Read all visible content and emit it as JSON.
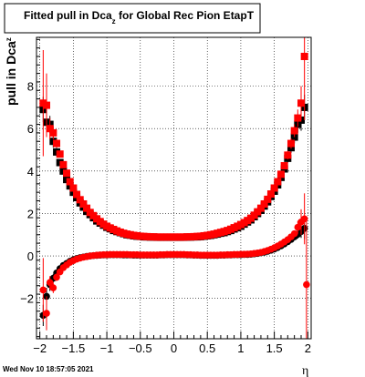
{
  "chart_data": {
    "type": "scatter",
    "title_main": "Fitted pull in Dca",
    "title_sub": "z",
    "title_rest": " for Global Rec Pion EtapT",
    "ylabel_main": "pull in Dca",
    "ylabel_sub": "z",
    "xlabel": "η",
    "footer": "Wed Nov 10 18:57:05 2021",
    "xlim": [
      -2.05,
      2.05
    ],
    "ylim": [
      -3.9,
      10.3
    ],
    "grid": true,
    "x_ticks": [
      -2,
      -1.5,
      -1,
      -0.5,
      0,
      0.5,
      1,
      1.5,
      2
    ],
    "x_tick_labels": [
      "−2",
      "−1.5",
      "−1",
      "−0.5",
      "0",
      "0.5",
      "1",
      "1.5",
      "2"
    ],
    "y_ticks": [
      -2,
      0,
      2,
      4,
      6,
      8
    ],
    "y_tick_labels": [
      "−2",
      "0",
      "2",
      "4",
      "6",
      "8"
    ],
    "colors": {
      "series_black": "#000000",
      "series_red": "#ff0000"
    },
    "series": [
      {
        "marker": "square",
        "color": "#000000",
        "x": [
          -1.95,
          -1.9,
          -1.85,
          -1.8,
          -1.75,
          -1.7,
          -1.65,
          -1.6,
          -1.55,
          -1.5,
          -1.45,
          -1.4,
          -1.35,
          -1.3,
          -1.25,
          -1.2,
          -1.15,
          -1.1,
          -1.05,
          -1.0,
          -0.95,
          -0.9,
          -0.85,
          -0.8,
          -0.75,
          -0.7,
          -0.65,
          -0.6,
          -0.55,
          -0.5,
          -0.45,
          -0.4,
          -0.35,
          -0.3,
          -0.25,
          -0.2,
          -0.15,
          -0.1,
          -0.05,
          0.0,
          0.05,
          0.1,
          0.15,
          0.2,
          0.25,
          0.3,
          0.35,
          0.4,
          0.45,
          0.5,
          0.55,
          0.6,
          0.65,
          0.7,
          0.75,
          0.8,
          0.85,
          0.9,
          0.95,
          1.0,
          1.05,
          1.1,
          1.15,
          1.2,
          1.25,
          1.3,
          1.35,
          1.4,
          1.45,
          1.5,
          1.55,
          1.6,
          1.65,
          1.7,
          1.75,
          1.8,
          1.85,
          1.9,
          1.95
        ],
        "y": [
          6.9,
          6.3,
          6.2,
          5.4,
          4.9,
          4.4,
          4.0,
          3.6,
          3.3,
          3.0,
          2.75,
          2.5,
          2.3,
          2.1,
          1.95,
          1.8,
          1.65,
          1.55,
          1.45,
          1.35,
          1.28,
          1.2,
          1.15,
          1.1,
          1.05,
          1.0,
          0.98,
          0.95,
          0.93,
          0.92,
          0.9,
          0.9,
          0.89,
          0.89,
          0.88,
          0.88,
          0.88,
          0.88,
          0.88,
          0.88,
          0.88,
          0.88,
          0.88,
          0.89,
          0.89,
          0.9,
          0.9,
          0.91,
          0.93,
          0.95,
          0.97,
          1.0,
          1.03,
          1.07,
          1.1,
          1.15,
          1.2,
          1.27,
          1.33,
          1.4,
          1.5,
          1.6,
          1.7,
          1.85,
          2.0,
          2.15,
          2.35,
          2.55,
          2.8,
          3.05,
          3.35,
          3.7,
          4.1,
          4.6,
          5.1,
          5.6,
          6.2,
          6.4,
          7.0
        ],
        "err": [
          0.6,
          0.5,
          0.4,
          0.3,
          0.2,
          0.15,
          0.12,
          0.1,
          0.1,
          0.08,
          0.08,
          0.07,
          0.07,
          0.06,
          0.06,
          0.06,
          0.05,
          0.05,
          0.05,
          0.05,
          0.05,
          0.05,
          0.05,
          0.05,
          0.05,
          0.05,
          0.05,
          0.05,
          0.05,
          0.05,
          0.05,
          0.05,
          0.05,
          0.05,
          0.05,
          0.05,
          0.05,
          0.05,
          0.05,
          0.05,
          0.05,
          0.05,
          0.05,
          0.05,
          0.05,
          0.05,
          0.05,
          0.05,
          0.05,
          0.05,
          0.05,
          0.05,
          0.05,
          0.05,
          0.05,
          0.05,
          0.05,
          0.05,
          0.05,
          0.05,
          0.05,
          0.05,
          0.06,
          0.06,
          0.06,
          0.07,
          0.07,
          0.08,
          0.08,
          0.1,
          0.1,
          0.12,
          0.15,
          0.2,
          0.25,
          0.3,
          0.4,
          0.5,
          0.6
        ]
      },
      {
        "marker": "square",
        "color": "#ff0000",
        "x": [
          -1.95,
          -1.9,
          -1.85,
          -1.8,
          -1.75,
          -1.7,
          -1.65,
          -1.6,
          -1.55,
          -1.5,
          -1.45,
          -1.4,
          -1.35,
          -1.3,
          -1.25,
          -1.2,
          -1.15,
          -1.1,
          -1.05,
          -1.0,
          -0.95,
          -0.9,
          -0.85,
          -0.8,
          -0.75,
          -0.7,
          -0.65,
          -0.6,
          -0.55,
          -0.5,
          -0.45,
          -0.4,
          -0.35,
          -0.3,
          -0.25,
          -0.2,
          -0.15,
          -0.1,
          -0.05,
          0.0,
          0.05,
          0.1,
          0.15,
          0.2,
          0.25,
          0.3,
          0.35,
          0.4,
          0.45,
          0.5,
          0.55,
          0.6,
          0.65,
          0.7,
          0.75,
          0.8,
          0.85,
          0.9,
          0.95,
          1.0,
          1.05,
          1.1,
          1.15,
          1.2,
          1.25,
          1.3,
          1.35,
          1.4,
          1.45,
          1.5,
          1.55,
          1.6,
          1.65,
          1.7,
          1.75,
          1.8,
          1.85,
          1.9,
          1.95
        ],
        "y": [
          7.2,
          7.1,
          6.0,
          5.8,
          5.3,
          4.8,
          4.3,
          3.9,
          3.5,
          3.2,
          2.9,
          2.65,
          2.45,
          2.25,
          2.05,
          1.9,
          1.75,
          1.62,
          1.5,
          1.4,
          1.32,
          1.25,
          1.18,
          1.12,
          1.07,
          1.03,
          1.0,
          0.97,
          0.95,
          0.93,
          0.92,
          0.91,
          0.9,
          0.9,
          0.89,
          0.89,
          0.89,
          0.89,
          0.89,
          0.89,
          0.89,
          0.89,
          0.89,
          0.9,
          0.9,
          0.91,
          0.92,
          0.93,
          0.95,
          0.97,
          1.0,
          1.03,
          1.07,
          1.11,
          1.15,
          1.2,
          1.26,
          1.33,
          1.4,
          1.48,
          1.57,
          1.67,
          1.78,
          1.92,
          2.08,
          2.25,
          2.45,
          2.67,
          2.92,
          3.2,
          3.5,
          3.85,
          4.25,
          4.75,
          5.3,
          5.9,
          6.5,
          7.2,
          9.4
        ],
        "err": [
          2.5,
          1.5,
          0.5,
          0.3,
          0.2,
          0.15,
          0.12,
          0.1,
          0.1,
          0.08,
          0.08,
          0.07,
          0.07,
          0.06,
          0.06,
          0.06,
          0.05,
          0.05,
          0.05,
          0.05,
          0.05,
          0.05,
          0.05,
          0.05,
          0.05,
          0.05,
          0.05,
          0.05,
          0.05,
          0.05,
          0.05,
          0.05,
          0.05,
          0.05,
          0.05,
          0.05,
          0.05,
          0.05,
          0.05,
          0.05,
          0.05,
          0.05,
          0.05,
          0.05,
          0.05,
          0.05,
          0.05,
          0.05,
          0.05,
          0.05,
          0.05,
          0.05,
          0.05,
          0.05,
          0.05,
          0.05,
          0.05,
          0.05,
          0.05,
          0.05,
          0.05,
          0.05,
          0.06,
          0.06,
          0.06,
          0.07,
          0.07,
          0.08,
          0.08,
          0.1,
          0.1,
          0.12,
          0.15,
          0.2,
          0.25,
          0.3,
          0.4,
          0.8,
          3.0
        ]
      },
      {
        "marker": "circle",
        "color": "#000000",
        "x": [
          -1.95,
          -1.9,
          -1.85,
          -1.8,
          -1.75,
          -1.7,
          -1.65,
          -1.6,
          -1.55,
          -1.5,
          -1.45,
          -1.4,
          -1.35,
          -1.3,
          -1.25,
          -1.2,
          -1.15,
          -1.1,
          -1.05,
          -1.0,
          -0.95,
          -0.9,
          -0.85,
          -0.8,
          -0.75,
          -0.7,
          -0.65,
          -0.6,
          -0.55,
          -0.5,
          -0.45,
          -0.4,
          -0.35,
          -0.3,
          -0.25,
          -0.2,
          -0.15,
          -0.1,
          -0.05,
          0.0,
          0.05,
          0.1,
          0.15,
          0.2,
          0.25,
          0.3,
          0.35,
          0.4,
          0.45,
          0.5,
          0.55,
          0.6,
          0.65,
          0.7,
          0.75,
          0.8,
          0.85,
          0.9,
          0.95,
          1.0,
          1.05,
          1.1,
          1.15,
          1.2,
          1.25,
          1.3,
          1.35,
          1.4,
          1.45,
          1.5,
          1.55,
          1.6,
          1.65,
          1.7,
          1.75,
          1.8,
          1.85,
          1.9,
          1.95
        ],
        "y": [
          -2.8,
          -1.9,
          -1.35,
          -1.05,
          -0.8,
          -0.6,
          -0.45,
          -0.35,
          -0.25,
          -0.18,
          -0.12,
          -0.08,
          -0.05,
          -0.02,
          0.0,
          0.02,
          0.03,
          0.04,
          0.05,
          0.05,
          0.06,
          0.06,
          0.06,
          0.06,
          0.05,
          0.05,
          0.05,
          0.04,
          0.04,
          0.04,
          0.04,
          0.04,
          0.04,
          0.04,
          0.04,
          0.05,
          0.05,
          0.06,
          0.06,
          0.06,
          0.06,
          0.06,
          0.06,
          0.05,
          0.05,
          0.04,
          0.04,
          0.03,
          0.03,
          0.03,
          0.03,
          0.03,
          0.03,
          0.04,
          0.04,
          0.05,
          0.05,
          0.06,
          0.06,
          0.06,
          0.07,
          0.07,
          0.08,
          0.1,
          0.12,
          0.15,
          0.18,
          0.22,
          0.27,
          0.33,
          0.4,
          0.48,
          0.57,
          0.67,
          0.78,
          0.9,
          1.02,
          1.15,
          1.3
        ],
        "err": [
          0.5,
          0.4,
          0.3,
          0.2,
          0.15,
          0.12,
          0.1,
          0.08,
          0.07,
          0.06,
          0.05,
          0.05,
          0.05,
          0.05,
          0.05,
          0.05,
          0.05,
          0.05,
          0.05,
          0.05,
          0.05,
          0.05,
          0.05,
          0.05,
          0.05,
          0.05,
          0.05,
          0.05,
          0.05,
          0.05,
          0.05,
          0.05,
          0.05,
          0.05,
          0.05,
          0.05,
          0.05,
          0.05,
          0.05,
          0.05,
          0.05,
          0.05,
          0.05,
          0.05,
          0.05,
          0.05,
          0.05,
          0.05,
          0.05,
          0.05,
          0.05,
          0.05,
          0.05,
          0.05,
          0.05,
          0.05,
          0.05,
          0.05,
          0.05,
          0.05,
          0.05,
          0.05,
          0.05,
          0.05,
          0.05,
          0.05,
          0.05,
          0.05,
          0.05,
          0.06,
          0.06,
          0.07,
          0.08,
          0.1,
          0.12,
          0.15,
          0.2,
          0.3,
          0.5
        ]
      },
      {
        "marker": "circle",
        "color": "#ff0000",
        "x": [
          -1.95,
          -1.9,
          -1.85,
          -1.8,
          -1.75,
          -1.7,
          -1.65,
          -1.6,
          -1.55,
          -1.5,
          -1.45,
          -1.4,
          -1.35,
          -1.3,
          -1.25,
          -1.2,
          -1.15,
          -1.1,
          -1.05,
          -1.0,
          -0.95,
          -0.9,
          -0.85,
          -0.8,
          -0.75,
          -0.7,
          -0.65,
          -0.6,
          -0.55,
          -0.5,
          -0.45,
          -0.4,
          -0.35,
          -0.3,
          -0.25,
          -0.2,
          -0.15,
          -0.1,
          -0.05,
          0.0,
          0.05,
          0.1,
          0.15,
          0.2,
          0.25,
          0.3,
          0.35,
          0.4,
          0.45,
          0.5,
          0.55,
          0.6,
          0.65,
          0.7,
          0.75,
          0.8,
          0.85,
          0.9,
          0.95,
          1.0,
          1.05,
          1.1,
          1.15,
          1.2,
          1.25,
          1.3,
          1.35,
          1.4,
          1.45,
          1.5,
          1.55,
          1.6,
          1.65,
          1.7,
          1.75,
          1.8,
          1.85,
          1.9,
          1.95
        ],
        "y": [
          -1.6,
          -2.7,
          -1.25,
          -1.5,
          -1.0,
          -0.75,
          -0.55,
          -0.42,
          -0.3,
          -0.22,
          -0.15,
          -0.1,
          -0.06,
          -0.03,
          0.0,
          0.02,
          0.04,
          0.05,
          0.06,
          0.06,
          0.07,
          0.07,
          0.07,
          0.07,
          0.07,
          0.07,
          0.06,
          0.06,
          0.06,
          0.05,
          0.05,
          0.05,
          0.05,
          0.05,
          0.05,
          0.06,
          0.06,
          0.07,
          0.07,
          0.07,
          0.07,
          0.07,
          0.07,
          0.06,
          0.06,
          0.05,
          0.05,
          0.04,
          0.04,
          0.04,
          0.04,
          0.04,
          0.04,
          0.05,
          0.05,
          0.06,
          0.06,
          0.07,
          0.07,
          0.08,
          0.08,
          0.09,
          0.1,
          0.12,
          0.14,
          0.17,
          0.21,
          0.26,
          0.32,
          0.39,
          0.47,
          0.56,
          0.66,
          0.77,
          0.9,
          1.05,
          1.35,
          1.6,
          1.75
        ],
        "err": [
          1.5,
          0.8,
          0.3,
          0.25,
          0.18,
          0.14,
          0.11,
          0.09,
          0.08,
          0.07,
          0.06,
          0.05,
          0.05,
          0.05,
          0.05,
          0.05,
          0.05,
          0.05,
          0.05,
          0.05,
          0.05,
          0.05,
          0.05,
          0.05,
          0.05,
          0.05,
          0.05,
          0.05,
          0.05,
          0.05,
          0.05,
          0.05,
          0.05,
          0.05,
          0.05,
          0.05,
          0.05,
          0.05,
          0.05,
          0.05,
          0.05,
          0.05,
          0.05,
          0.05,
          0.05,
          0.05,
          0.05,
          0.05,
          0.05,
          0.05,
          0.05,
          0.05,
          0.05,
          0.05,
          0.05,
          0.05,
          0.05,
          0.05,
          0.05,
          0.05,
          0.05,
          0.05,
          0.05,
          0.05,
          0.05,
          0.05,
          0.05,
          0.05,
          0.05,
          0.06,
          0.06,
          0.07,
          0.08,
          0.1,
          0.12,
          0.15,
          0.3,
          0.6,
          1.2
        ]
      },
      {
        "marker": "circle",
        "color": "#ff0000",
        "x": [
          1.98
        ],
        "y": [
          -1.35
        ],
        "err": [
          3.0
        ]
      }
    ]
  }
}
